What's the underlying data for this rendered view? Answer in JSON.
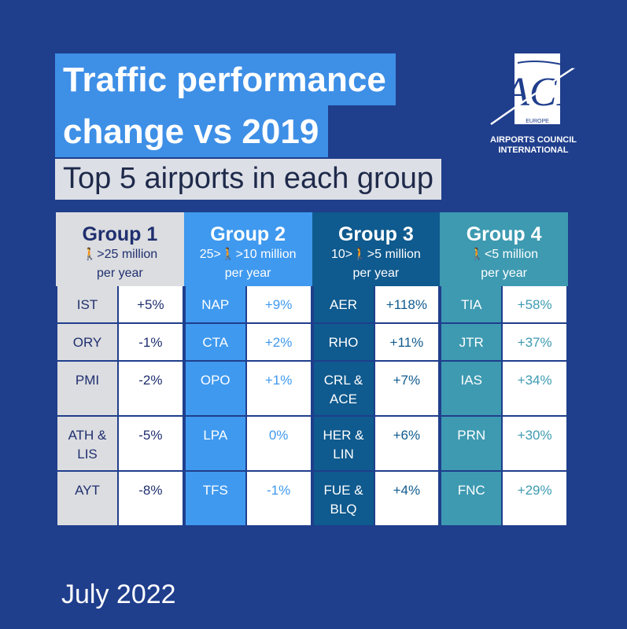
{
  "title": {
    "line1": "Traffic performance",
    "line2": "change vs 2019"
  },
  "subtitle": "Top 5 airports in each group",
  "logo": {
    "mark": "ACI",
    "region": "EUROPE",
    "name_line1": "AIRPORTS COUNCIL",
    "name_line2": "INTERNATIONAL"
  },
  "walker_icon": "person-with-luggage-icon",
  "groups": [
    {
      "name": "Group 1",
      "desc_line1": ">25 million",
      "desc_line2": "per year",
      "rows": [
        {
          "code": "IST",
          "change": "+5%"
        },
        {
          "code": "ORY",
          "change": "-1%"
        },
        {
          "code": "PMI",
          "change": "-2%"
        },
        {
          "code": "ATH &",
          "code2": "LIS",
          "change": "-5%"
        },
        {
          "code": "AYT",
          "change": "-8%"
        }
      ]
    },
    {
      "name": "Group 2",
      "desc_prefix": "25>",
      "desc_line1": ">10 million",
      "desc_line2": "per year",
      "rows": [
        {
          "code": "NAP",
          "change": "+9%"
        },
        {
          "code": "CTA",
          "change": "+2%"
        },
        {
          "code": "OPO",
          "change": "+1%"
        },
        {
          "code": "LPA",
          "change": "0%"
        },
        {
          "code": "TFS",
          "change": "-1%"
        }
      ]
    },
    {
      "name": "Group 3",
      "desc_prefix": "10>",
      "desc_line1": ">5 million",
      "desc_line2": "per year",
      "rows": [
        {
          "code": "AER",
          "change": "+118%"
        },
        {
          "code": "RHO",
          "change": "+11%"
        },
        {
          "code": "CRL &",
          "code2": "ACE",
          "change": "+7%"
        },
        {
          "code": "HER &",
          "code2": "LIN",
          "change": "+6%"
        },
        {
          "code": "FUE &",
          "code2": "BLQ",
          "change": "+4%"
        }
      ]
    },
    {
      "name": "Group 4",
      "desc_line1": "<5 million",
      "desc_line2": "per year",
      "rows": [
        {
          "code": "TIA",
          "change": "+58%"
        },
        {
          "code": "JTR",
          "change": "+37%"
        },
        {
          "code": "IAS",
          "change": "+34%"
        },
        {
          "code": "PRN",
          "change": "+30%"
        },
        {
          "code": "FNC",
          "change": "+29%"
        }
      ]
    }
  ],
  "date": "July 2022",
  "colors": {
    "background": "#1f3e8c",
    "title_bg": "#3e8fe6",
    "group1": "#dcdde0",
    "group2": "#3f99ef",
    "group3": "#0f5a8e",
    "group4": "#3d9ab1"
  }
}
